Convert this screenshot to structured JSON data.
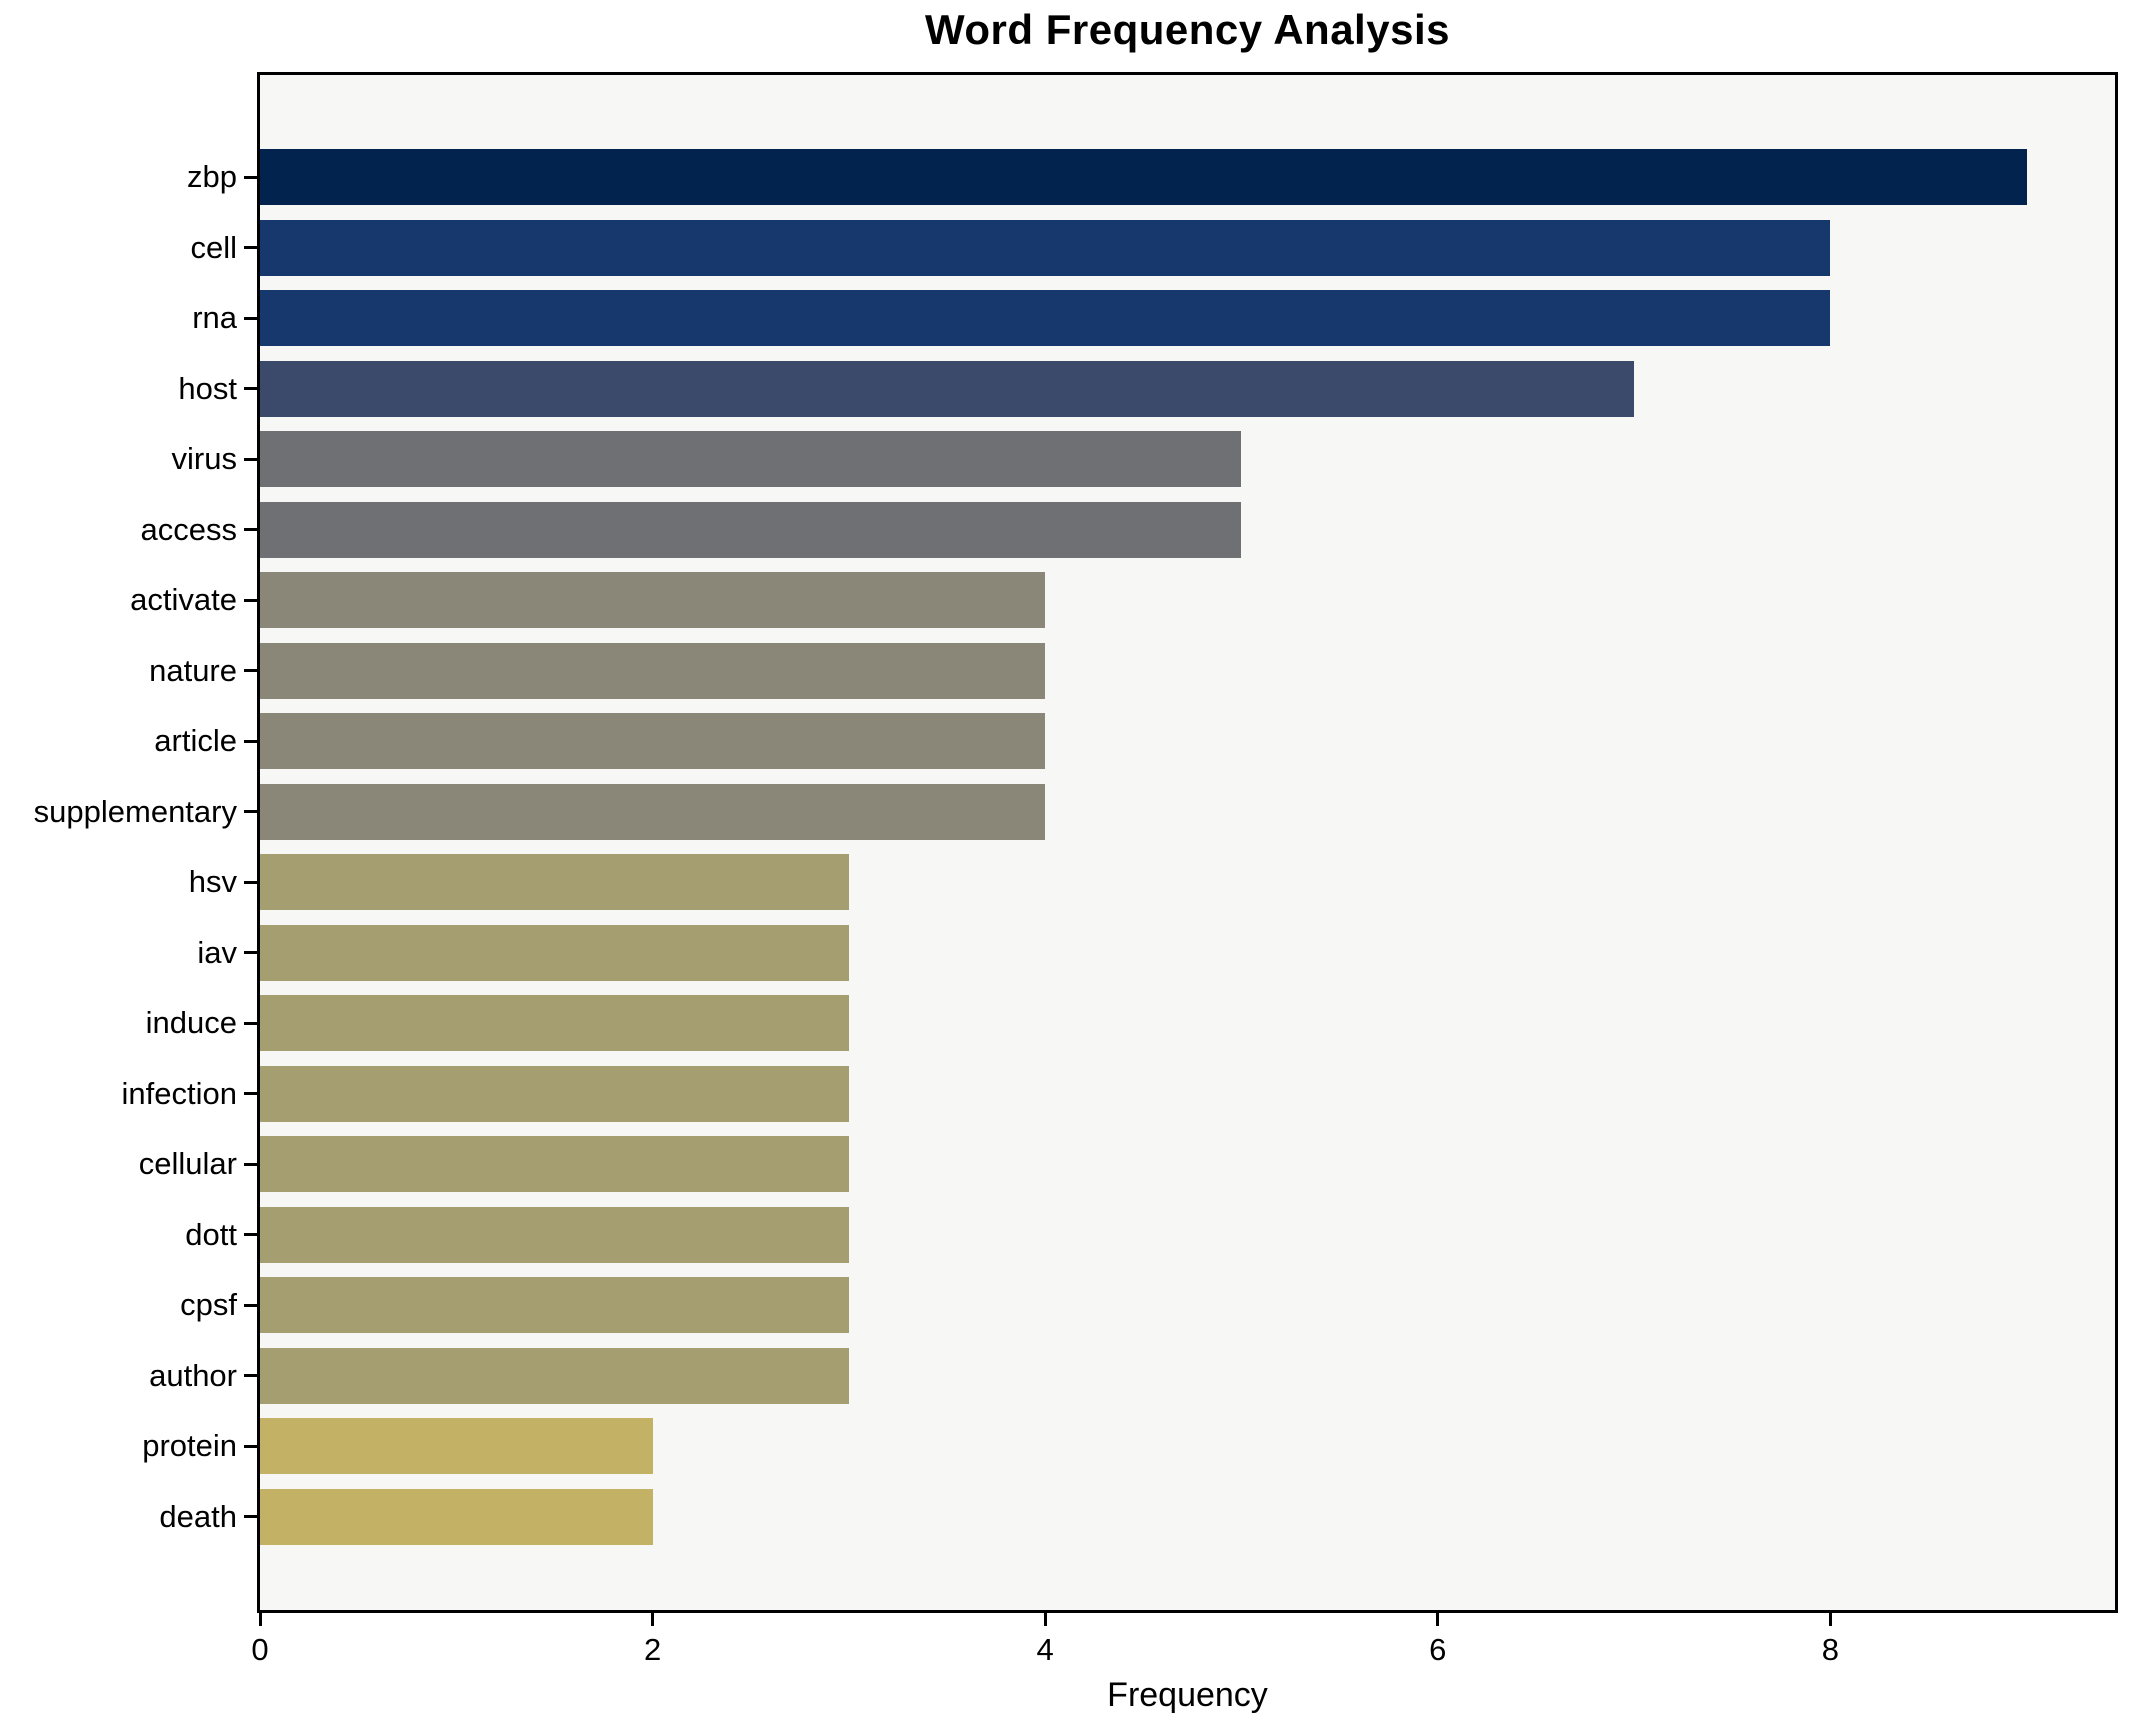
{
  "title": "Word Frequency Analysis",
  "xlabel": "Frequency",
  "chart_data": {
    "type": "bar",
    "orientation": "horizontal",
    "title": "Word Frequency Analysis",
    "xlabel": "Frequency",
    "ylabel": "",
    "grid": false,
    "legend": false,
    "xlim": [
      0,
      9.45
    ],
    "xticks": [
      0,
      2,
      4,
      6,
      8
    ],
    "colormap": "cividis-reversed-by-value",
    "plot_background": "#f7f7f5",
    "figure_background": "#ffffff",
    "spine_color": "#000000",
    "categories": [
      "zbp",
      "cell",
      "rna",
      "host",
      "virus",
      "access",
      "activate",
      "nature",
      "article",
      "supplementary",
      "hsv",
      "iav",
      "induce",
      "infection",
      "cellular",
      "dott",
      "cpsf",
      "author",
      "protein",
      "death"
    ],
    "values": [
      9,
      8,
      8,
      7,
      5,
      5,
      4,
      4,
      4,
      4,
      3,
      3,
      3,
      3,
      3,
      3,
      3,
      3,
      2,
      2
    ],
    "bar_colors": [
      "#01234e",
      "#17386c",
      "#17386c",
      "#3b4a6b",
      "#6f7073",
      "#6f7073",
      "#8a8779",
      "#8a8779",
      "#8a8779",
      "#8a8779",
      "#a59e70",
      "#a59e70",
      "#a59e70",
      "#a59e70",
      "#a59e70",
      "#a59e70",
      "#a59e70",
      "#a59e70",
      "#c3b266",
      "#c3b266"
    ]
  }
}
